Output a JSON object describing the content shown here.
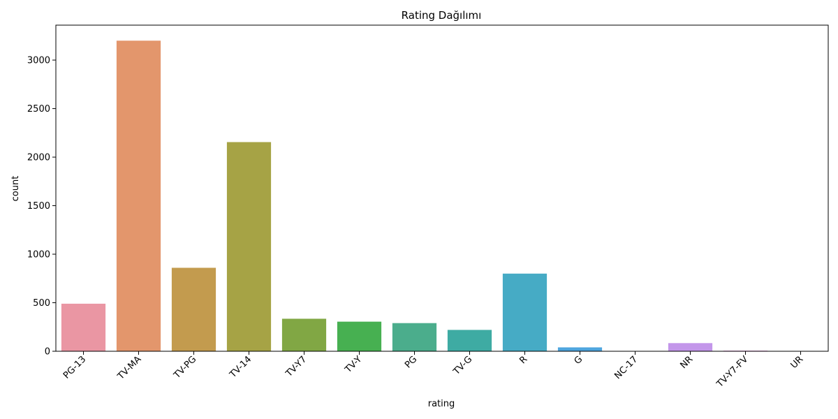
{
  "chart_data": {
    "type": "bar",
    "title": "Rating Dağılımı",
    "xlabel": "rating",
    "ylabel": "count",
    "categories": [
      "PG-13",
      "TV-MA",
      "TV-PG",
      "TV-14",
      "TV-Y7",
      "TV-Y",
      "PG",
      "TV-G",
      "R",
      "G",
      "NC-17",
      "NR",
      "TV-Y7-FV",
      "UR"
    ],
    "values": [
      490,
      3200,
      860,
      2155,
      335,
      305,
      290,
      220,
      800,
      40,
      3,
      84,
      6,
      3
    ],
    "colors": [
      "#ea96a3",
      "#e3966c",
      "#c39b4e",
      "#a6a345",
      "#81a744",
      "#47b051",
      "#4bad8c",
      "#3eaba3",
      "#46abc5",
      "#4ea5de",
      "#a2a7ea",
      "#c396ea",
      "#e386da",
      "#e992bd"
    ],
    "ylim": [
      0,
      3360
    ],
    "yticks": [
      0,
      500,
      1000,
      1500,
      2000,
      2500,
      3000
    ],
    "grid": false,
    "legend": "none"
  }
}
